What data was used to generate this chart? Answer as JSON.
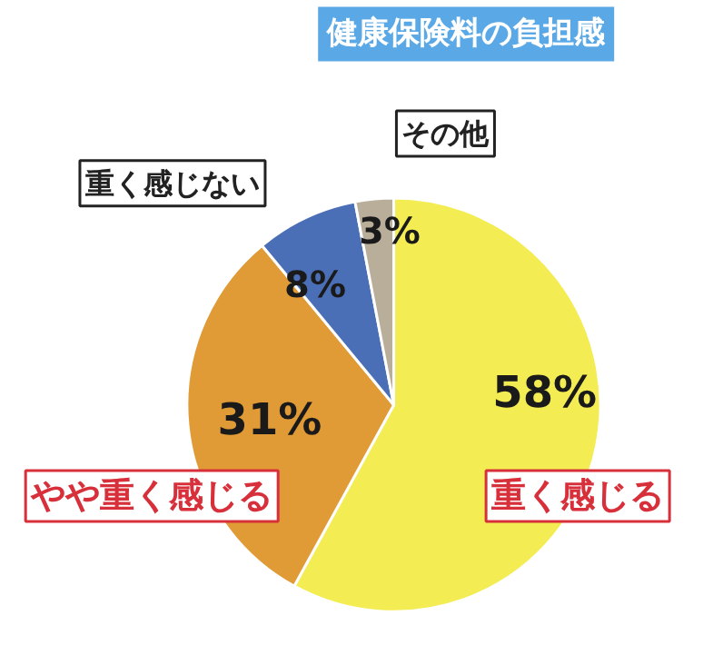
{
  "chart_data": {
    "type": "pie",
    "title": "健康保険料の負担感",
    "categories": [
      "重く感じる",
      "やや重く感じる",
      "重く感じない",
      "その他"
    ],
    "values": [
      58,
      31,
      8,
      3
    ],
    "colors": [
      "#f3ec52",
      "#e09a36",
      "#4b6fb7",
      "#b9ae9a"
    ],
    "value_labels": [
      "58%",
      "31%",
      "8%",
      "3%"
    ]
  }
}
